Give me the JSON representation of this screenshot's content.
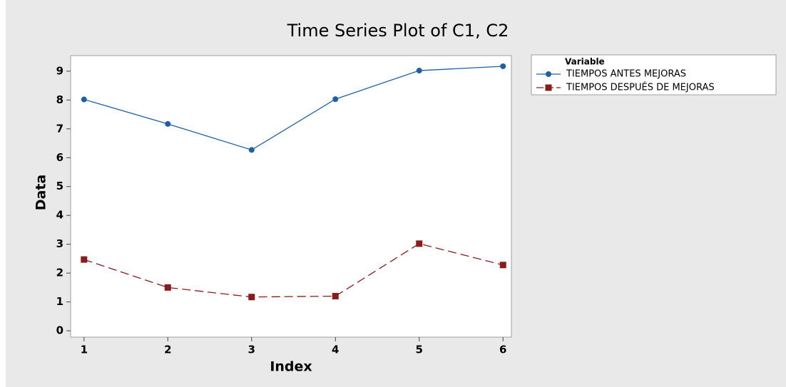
{
  "chart_data": {
    "type": "line",
    "title": "Time Series Plot of C1, C2",
    "x_label": "Index",
    "y_label": "Data",
    "x": [
      1,
      2,
      3,
      4,
      5,
      6
    ],
    "xlim": [
      0.84,
      6.1
    ],
    "xticks": [
      1,
      2,
      3,
      4,
      5,
      6
    ],
    "ylim": [
      -0.22,
      9.54
    ],
    "yticks": [
      0,
      1,
      2,
      3,
      4,
      5,
      6,
      7,
      8,
      9
    ],
    "legend_title": "Variable",
    "legend_position": "right",
    "series": [
      {
        "name": "TIEMPOS ANTES MEJORAS",
        "color": "#1f5fa8",
        "marker": "circle",
        "linestyle": "solid",
        "values": [
          8.02,
          7.17,
          6.27,
          8.03,
          9.02,
          9.17
        ]
      },
      {
        "name": "TIEMPOS DESPUÉS DE MEJORAS",
        "color": "#8b1a1a",
        "marker": "square",
        "linestyle": "dashed",
        "values": [
          2.47,
          1.5,
          1.17,
          1.2,
          3.02,
          2.28
        ]
      }
    ]
  }
}
